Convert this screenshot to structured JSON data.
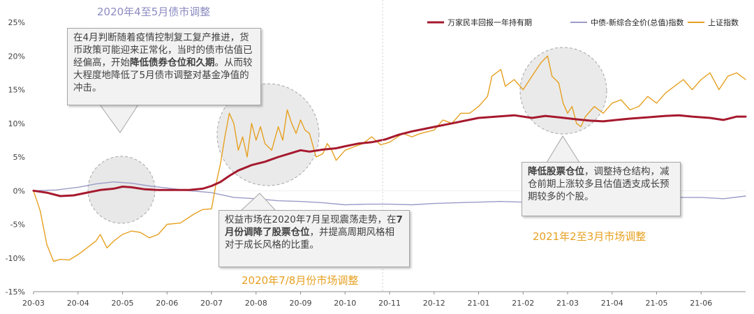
{
  "chart_data": {
    "type": "line",
    "x_ticks": [
      "20-03",
      "20-04",
      "20-05",
      "20-06",
      "20-07",
      "20-08",
      "20-09",
      "20-10",
      "20-11",
      "20-12",
      "21-01",
      "21-02",
      "21-03",
      "21-04",
      "21-05",
      "21-06"
    ],
    "y_ticks": [
      "25%",
      "20%",
      "15%",
      "10%",
      "5%",
      "0%",
      "-5%",
      "-10%",
      "-15%"
    ],
    "ylim": [
      -15,
      25
    ],
    "grid": false,
    "legend_position": "top-right",
    "series": [
      {
        "name": "万家民丰回报一年持有期",
        "color": "#a6192e",
        "points": [
          [
            0,
            0
          ],
          [
            0.3,
            -0.3
          ],
          [
            0.6,
            -0.8
          ],
          [
            0.9,
            -0.7
          ],
          [
            1.2,
            -0.3
          ],
          [
            1.5,
            0.1
          ],
          [
            1.8,
            0.3
          ],
          [
            2.0,
            0.6
          ],
          [
            2.2,
            0.5
          ],
          [
            2.5,
            0.2
          ],
          [
            2.8,
            0.1
          ],
          [
            3.1,
            0.1
          ],
          [
            3.5,
            0.1
          ],
          [
            3.8,
            0.3
          ],
          [
            4.0,
            0.7
          ],
          [
            4.2,
            1.3
          ],
          [
            4.4,
            2.2
          ],
          [
            4.6,
            3.0
          ],
          [
            4.9,
            3.8
          ],
          [
            5.2,
            4.3
          ],
          [
            5.5,
            5.0
          ],
          [
            5.8,
            5.6
          ],
          [
            6.0,
            6.0
          ],
          [
            6.2,
            5.8
          ],
          [
            6.5,
            6.1
          ],
          [
            6.8,
            6.3
          ],
          [
            7.0,
            6.6
          ],
          [
            7.3,
            7.0
          ],
          [
            7.6,
            7.2
          ],
          [
            7.9,
            7.6
          ],
          [
            8.2,
            8.3
          ],
          [
            8.5,
            8.8
          ],
          [
            8.8,
            9.2
          ],
          [
            9.1,
            9.6
          ],
          [
            9.4,
            10.0
          ],
          [
            9.7,
            10.4
          ],
          [
            10.0,
            10.8
          ],
          [
            10.4,
            11.0
          ],
          [
            10.8,
            11.2
          ],
          [
            11.2,
            10.8
          ],
          [
            11.5,
            11.1
          ],
          [
            11.8,
            10.9
          ],
          [
            12.2,
            10.6
          ],
          [
            12.5,
            10.4
          ],
          [
            12.8,
            10.3
          ],
          [
            13.1,
            10.5
          ],
          [
            13.4,
            10.7
          ],
          [
            13.8,
            10.9
          ],
          [
            14.2,
            11.1
          ],
          [
            14.5,
            11.2
          ],
          [
            14.8,
            11.0
          ],
          [
            15.2,
            10.8
          ],
          [
            15.5,
            10.5
          ],
          [
            15.8,
            11.0
          ],
          [
            16.0,
            11.0
          ]
        ]
      },
      {
        "name": "中债-新综合全价(总值)指数",
        "color": "#9b9bc8",
        "points": [
          [
            0,
            0
          ],
          [
            0.5,
            0.1
          ],
          [
            1.0,
            0.5
          ],
          [
            1.4,
            1.0
          ],
          [
            1.8,
            1.3
          ],
          [
            2.2,
            1.1
          ],
          [
            2.6,
            0.7
          ],
          [
            3.0,
            0.4
          ],
          [
            3.5,
            0.0
          ],
          [
            4.0,
            -0.3
          ],
          [
            4.5,
            -1.0
          ],
          [
            5.0,
            -1.2
          ],
          [
            5.5,
            -1.5
          ],
          [
            6.0,
            -1.6
          ],
          [
            6.5,
            -1.8
          ],
          [
            7.0,
            -2.1
          ],
          [
            7.5,
            -2.0
          ],
          [
            8.0,
            -2.0
          ],
          [
            8.5,
            -2.1
          ],
          [
            9.0,
            -1.9
          ],
          [
            9.5,
            -1.8
          ],
          [
            10.0,
            -1.7
          ],
          [
            10.5,
            -1.6
          ],
          [
            11.0,
            -1.7
          ],
          [
            11.5,
            -1.5
          ],
          [
            12.0,
            -1.4
          ],
          [
            12.5,
            -1.2
          ],
          [
            13.0,
            -1.1
          ],
          [
            13.5,
            -1.1
          ],
          [
            14.0,
            -1.0
          ],
          [
            14.5,
            -1.0
          ],
          [
            15.0,
            -1.0
          ],
          [
            15.5,
            -1.2
          ],
          [
            16.0,
            -0.8
          ]
        ]
      },
      {
        "name": "上证指数",
        "color": "#e6a020",
        "points": [
          [
            0,
            0
          ],
          [
            0.15,
            -3
          ],
          [
            0.3,
            -8
          ],
          [
            0.45,
            -10.5
          ],
          [
            0.6,
            -10.2
          ],
          [
            0.8,
            -10.3
          ],
          [
            1.0,
            -9.5
          ],
          [
            1.2,
            -8.5
          ],
          [
            1.4,
            -7.5
          ],
          [
            1.5,
            -6.5
          ],
          [
            1.65,
            -8.5
          ],
          [
            1.8,
            -7.5
          ],
          [
            2.0,
            -6.5
          ],
          [
            2.2,
            -6.0
          ],
          [
            2.4,
            -6.2
          ],
          [
            2.6,
            -7.0
          ],
          [
            2.8,
            -6.5
          ],
          [
            3.0,
            -5.0
          ],
          [
            3.3,
            -4.8
          ],
          [
            3.6,
            -3.5
          ],
          [
            3.8,
            -2.8
          ],
          [
            4.0,
            -2.7
          ],
          [
            4.1,
            1.0
          ],
          [
            4.2,
            4.0
          ],
          [
            4.3,
            8.0
          ],
          [
            4.4,
            11.5
          ],
          [
            4.5,
            10.0
          ],
          [
            4.6,
            6.0
          ],
          [
            4.7,
            8.0
          ],
          [
            4.8,
            5.0
          ],
          [
            4.9,
            10.0
          ],
          [
            5.0,
            7.5
          ],
          [
            5.1,
            9.5
          ],
          [
            5.2,
            7.0
          ],
          [
            5.35,
            6.0
          ],
          [
            5.5,
            9.5
          ],
          [
            5.6,
            7.5
          ],
          [
            5.7,
            12.0
          ],
          [
            5.8,
            10.0
          ],
          [
            5.9,
            8.5
          ],
          [
            6.0,
            10.5
          ],
          [
            6.1,
            9.0
          ],
          [
            6.2,
            8.5
          ],
          [
            6.35,
            5.0
          ],
          [
            6.5,
            5.5
          ],
          [
            6.6,
            7.0
          ],
          [
            6.7,
            6.0
          ],
          [
            6.8,
            4.5
          ],
          [
            7.0,
            6.0
          ],
          [
            7.2,
            6.5
          ],
          [
            7.4,
            7.0
          ],
          [
            7.6,
            8.0
          ],
          [
            7.8,
            6.8
          ],
          [
            8.0,
            7.2
          ],
          [
            8.3,
            8.5
          ],
          [
            8.5,
            8.0
          ],
          [
            8.7,
            8.5
          ],
          [
            9.0,
            9.0
          ],
          [
            9.2,
            10.5
          ],
          [
            9.4,
            10.0
          ],
          [
            9.6,
            11.5
          ],
          [
            9.8,
            11.5
          ],
          [
            10.0,
            12.5
          ],
          [
            10.2,
            14.0
          ],
          [
            10.3,
            17.0
          ],
          [
            10.5,
            18.0
          ],
          [
            10.6,
            15.5
          ],
          [
            10.8,
            16.5
          ],
          [
            11.0,
            15.0
          ],
          [
            11.2,
            17.0
          ],
          [
            11.4,
            19.0
          ],
          [
            11.55,
            20.0
          ],
          [
            11.65,
            17.0
          ],
          [
            11.8,
            16.0
          ],
          [
            11.9,
            13.0
          ],
          [
            12.0,
            11.5
          ],
          [
            12.1,
            12.5
          ],
          [
            12.2,
            10.0
          ],
          [
            12.3,
            9.5
          ],
          [
            12.4,
            11.0
          ],
          [
            12.6,
            12.5
          ],
          [
            12.8,
            11.5
          ],
          [
            13.0,
            13.0
          ],
          [
            13.2,
            13.5
          ],
          [
            13.4,
            12.0
          ],
          [
            13.6,
            12.5
          ],
          [
            13.8,
            14.0
          ],
          [
            14.0,
            13.0
          ],
          [
            14.2,
            14.5
          ],
          [
            14.4,
            15.5
          ],
          [
            14.6,
            16.5
          ],
          [
            14.8,
            15.0
          ],
          [
            15.0,
            16.5
          ],
          [
            15.2,
            17.5
          ],
          [
            15.4,
            15.0
          ],
          [
            15.6,
            17.0
          ],
          [
            15.8,
            17.5
          ],
          [
            16.0,
            16.5
          ]
        ]
      }
    ]
  },
  "annotations": {
    "title_2020_apr_may": "2020年4至5月债市调整",
    "title_2020_jul_aug": "2020年7/8月份市场调整",
    "title_2021_feb_mar": "2021年2至3月市场调整",
    "title_color_blue": "#8b8bc2",
    "title_color_orange": "#e6a020",
    "callout1": {
      "text_a": "在4月判断随着疫情控制复工复产推进，货币政策可能迎来正常化，当时的债市估值已经偏高，开始",
      "bold": "降低债券仓位和久期",
      "text_b": "。从而较大程度地降低了5月债市调整对基金净值的冲击。"
    },
    "callout2": {
      "text_a": "权益市场在2020年7月呈现震荡走势，在",
      "bold": "7月份调降了股票仓位",
      "text_b": "，并提高周期风格相对于成长风格的比重。"
    },
    "callout3": {
      "bold": "降低股票仓位",
      "text_b": "，调整持仓结构，减仓前期上涨较多且估值透支成长预期较多的个股。"
    }
  }
}
